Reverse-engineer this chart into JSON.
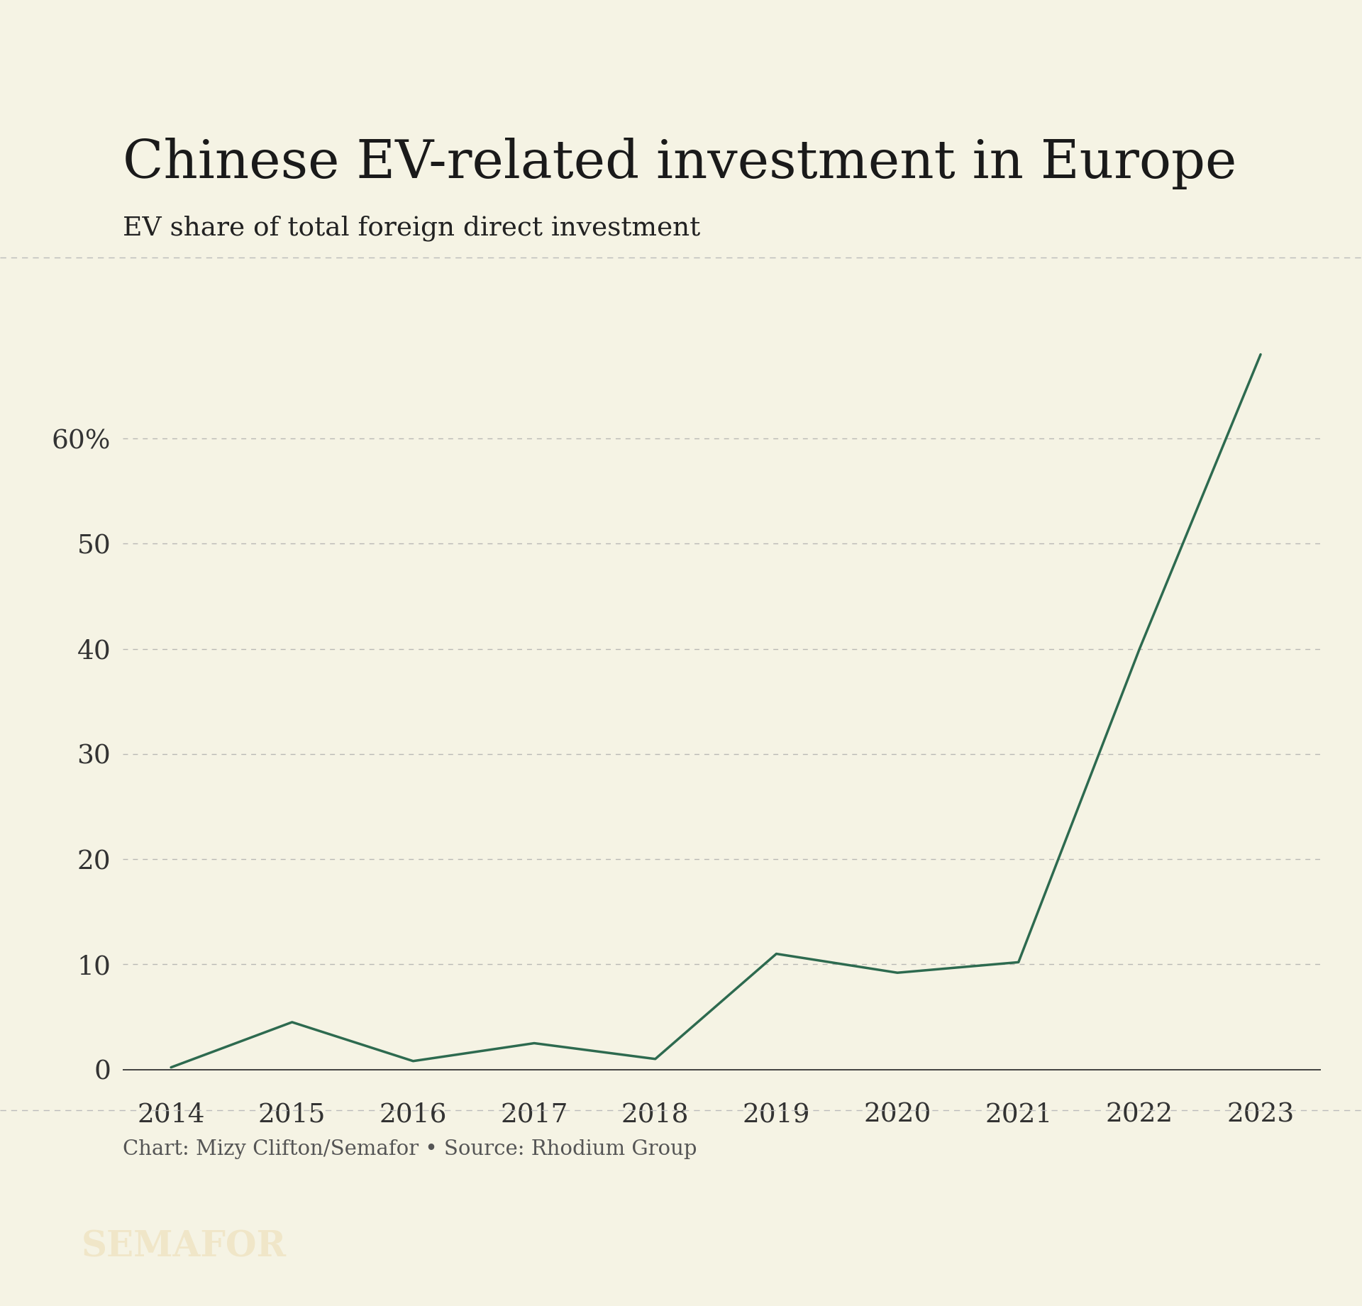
{
  "title": "Chinese EV-related investment in Europe",
  "subtitle": "EV share of total foreign direct investment",
  "source_text": "Chart: Mizy Clifton/Semafor • Source: Rhodium Group",
  "semafor_label": "SEMAFOR",
  "years": [
    2014,
    2015,
    2016,
    2017,
    2018,
    2019,
    2020,
    2021,
    2022,
    2023
  ],
  "values": [
    0.2,
    4.5,
    0.8,
    2.5,
    1.0,
    11.0,
    9.2,
    10.2,
    40.0,
    68.0
  ],
  "line_color": "#2d6a4f",
  "line_width": 2.5,
  "background_color": "#f5f3e4",
  "grid_color": "#aaaaaa",
  "ytick_positions": [
    0,
    10,
    20,
    30,
    40,
    50,
    60
  ],
  "ytick_labels": [
    "0",
    "10",
    "20",
    "30",
    "40",
    "50",
    "60%"
  ],
  "ylim": [
    -2,
    75
  ],
  "xlim": [
    2013.6,
    2023.5
  ],
  "title_fontsize": 54,
  "subtitle_fontsize": 27,
  "tick_fontsize": 27,
  "source_fontsize": 21,
  "semafor_fontsize": 36,
  "title_color": "#1a1a1a",
  "subtitle_color": "#222222",
  "tick_color": "#333333",
  "source_color": "#555555",
  "footer_bg": "#111111",
  "footer_text_color": "#f0e6c8",
  "spine_color": "#333333",
  "separator_color": "#bbbbbb"
}
